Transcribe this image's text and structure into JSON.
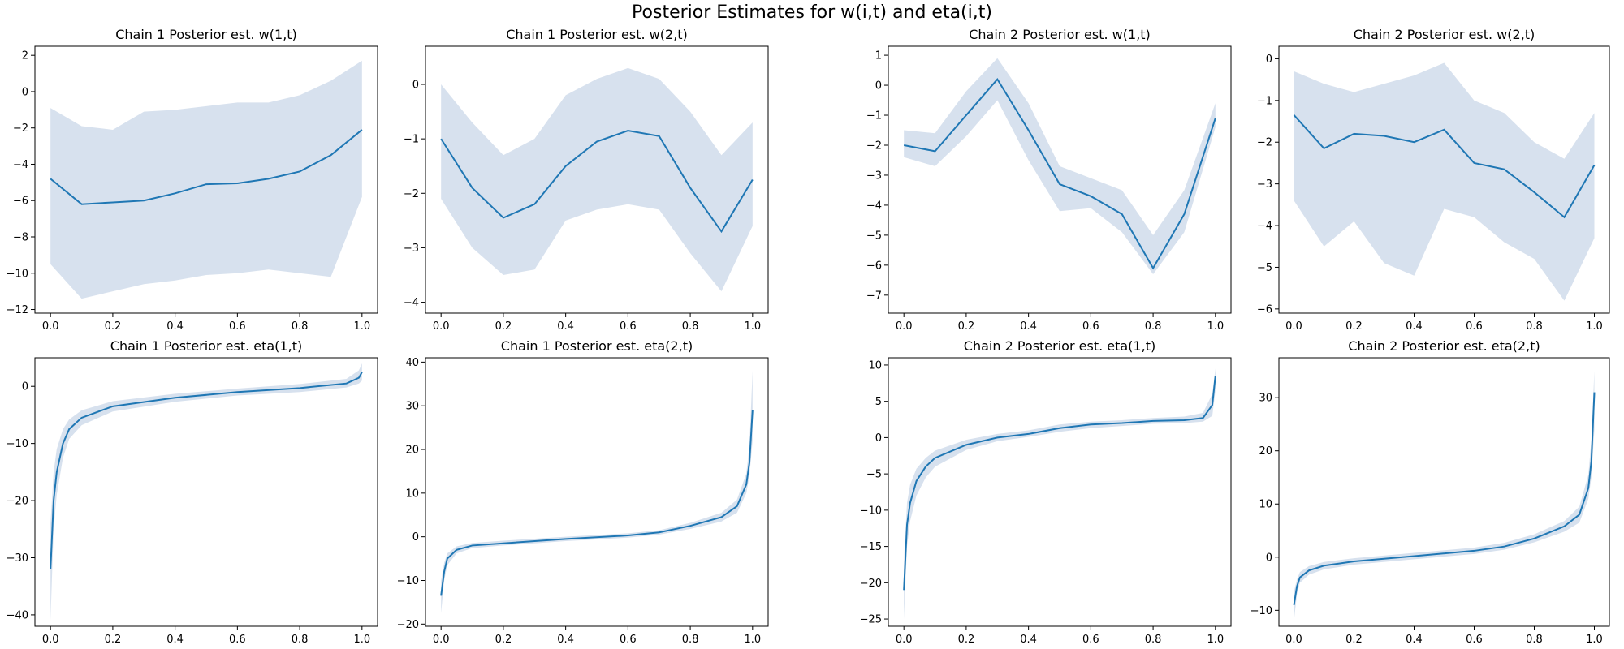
{
  "suptitle": "Posterior Estimates for w(i,t) and eta(i,t)",
  "colors": {
    "line": "#1f77b4",
    "band": "#b0c4de",
    "axes": "#000000"
  },
  "chart_data": [
    {
      "type": "line",
      "id": "c1-w1",
      "title": "Chain 1 Posterior est. w(1,t)",
      "xlim": [
        -0.05,
        1.05
      ],
      "ylim": [
        -12.2,
        2.5
      ],
      "xticks": [
        0.0,
        0.2,
        0.4,
        0.6,
        0.8,
        1.0
      ],
      "yticks": [
        -12,
        -10,
        -8,
        -6,
        -4,
        -2,
        0,
        2
      ],
      "xtick_labels": [
        "0.0",
        "0.2",
        "0.4",
        "0.6",
        "0.8",
        "1.0"
      ],
      "ytick_labels": [
        "−12",
        "−10",
        "−8",
        "−6",
        "−4",
        "−2",
        "0",
        "2"
      ],
      "x": [
        0.0,
        0.1,
        0.2,
        0.3,
        0.4,
        0.5,
        0.6,
        0.7,
        0.8,
        0.9,
        1.0
      ],
      "mean": [
        -4.8,
        -6.2,
        -6.1,
        -6.0,
        -5.6,
        -5.1,
        -5.05,
        -4.8,
        -4.4,
        -3.5,
        -2.1
      ],
      "upper": [
        -0.9,
        -1.9,
        -2.1,
        -1.1,
        -1.0,
        -0.8,
        -0.6,
        -0.6,
        -0.2,
        0.6,
        1.7
      ],
      "lower": [
        -9.5,
        -11.4,
        -11.0,
        -10.6,
        -10.4,
        -10.1,
        -10.0,
        -9.8,
        -10.0,
        -10.2,
        -5.8
      ]
    },
    {
      "type": "line",
      "id": "c1-w2",
      "title": "Chain 1 Posterior est. w(2,t)",
      "xlim": [
        -0.05,
        1.05
      ],
      "ylim": [
        -4.2,
        0.7
      ],
      "xticks": [
        0.0,
        0.2,
        0.4,
        0.6,
        0.8,
        1.0
      ],
      "yticks": [
        -4,
        -3,
        -2,
        -1,
        0
      ],
      "xtick_labels": [
        "0.0",
        "0.2",
        "0.4",
        "0.6",
        "0.8",
        "1.0"
      ],
      "ytick_labels": [
        "−4",
        "−3",
        "−2",
        "−1",
        "0"
      ],
      "x": [
        0.0,
        0.1,
        0.2,
        0.3,
        0.4,
        0.5,
        0.6,
        0.7,
        0.8,
        0.9,
        1.0
      ],
      "mean": [
        -1.0,
        -1.9,
        -2.45,
        -2.2,
        -1.5,
        -1.05,
        -0.85,
        -0.95,
        -1.9,
        -2.7,
        -1.75
      ],
      "upper": [
        0.0,
        -0.7,
        -1.3,
        -1.0,
        -0.2,
        0.1,
        0.3,
        0.1,
        -0.5,
        -1.3,
        -0.7
      ],
      "lower": [
        -2.1,
        -3.0,
        -3.5,
        -3.4,
        -2.5,
        -2.3,
        -2.2,
        -2.3,
        -3.1,
        -3.8,
        -2.6
      ]
    },
    {
      "type": "line",
      "id": "c2-w1",
      "title": "Chain 2 Posterior est. w(1,t)",
      "xlim": [
        -0.05,
        1.05
      ],
      "ylim": [
        -7.6,
        1.3
      ],
      "xticks": [
        0.0,
        0.2,
        0.4,
        0.6,
        0.8,
        1.0
      ],
      "yticks": [
        -7,
        -6,
        -5,
        -4,
        -3,
        -2,
        -1,
        0,
        1
      ],
      "xtick_labels": [
        "0.0",
        "0.2",
        "0.4",
        "0.6",
        "0.8",
        "1.0"
      ],
      "ytick_labels": [
        "−7",
        "−6",
        "−5",
        "−4",
        "−3",
        "−2",
        "−1",
        "0",
        "1"
      ],
      "x": [
        0.0,
        0.1,
        0.2,
        0.3,
        0.4,
        0.5,
        0.6,
        0.7,
        0.8,
        0.9,
        1.0
      ],
      "mean": [
        -2.0,
        -2.2,
        -1.0,
        0.2,
        -1.5,
        -3.3,
        -3.7,
        -4.3,
        -6.1,
        -4.3,
        -1.1
      ],
      "upper": [
        -1.5,
        -1.6,
        -0.2,
        0.9,
        -0.6,
        -2.7,
        -3.1,
        -3.5,
        -5.0,
        -3.5,
        -0.6
      ],
      "lower": [
        -2.4,
        -2.7,
        -1.7,
        -0.5,
        -2.5,
        -4.2,
        -4.1,
        -4.9,
        -6.3,
        -4.9,
        -1.4
      ]
    },
    {
      "type": "line",
      "id": "c2-w2",
      "title": "Chain 2 Posterior est. w(2,t)",
      "xlim": [
        -0.05,
        1.05
      ],
      "ylim": [
        -6.1,
        0.3
      ],
      "xticks": [
        0.0,
        0.2,
        0.4,
        0.6,
        0.8,
        1.0
      ],
      "yticks": [
        -6,
        -5,
        -4,
        -3,
        -2,
        -1,
        0
      ],
      "xtick_labels": [
        "0.0",
        "0.2",
        "0.4",
        "0.6",
        "0.8",
        "1.0"
      ],
      "ytick_labels": [
        "−6",
        "−5",
        "−4",
        "−3",
        "−2",
        "−1",
        "0"
      ],
      "x": [
        0.0,
        0.1,
        0.2,
        0.3,
        0.4,
        0.5,
        0.6,
        0.7,
        0.8,
        0.9,
        1.0
      ],
      "mean": [
        -1.35,
        -2.15,
        -1.8,
        -1.85,
        -2.0,
        -1.7,
        -2.5,
        -2.65,
        -3.2,
        -3.8,
        -2.55
      ],
      "upper": [
        -0.3,
        -0.6,
        -0.8,
        -0.6,
        -0.4,
        -0.1,
        -1.0,
        -1.3,
        -2.0,
        -2.4,
        -1.3
      ],
      "lower": [
        -3.4,
        -4.5,
        -3.9,
        -4.9,
        -5.2,
        -3.6,
        -3.8,
        -4.4,
        -4.8,
        -5.8,
        -4.3
      ]
    },
    {
      "type": "line",
      "id": "c1-eta1",
      "title": "Chain 1 Posterior est. eta(1,t)",
      "xlim": [
        -0.05,
        1.05
      ],
      "ylim": [
        -42,
        5
      ],
      "xticks": [
        0.0,
        0.2,
        0.4,
        0.6,
        0.8,
        1.0
      ],
      "yticks": [
        -40,
        -30,
        -20,
        -10,
        0
      ],
      "xtick_labels": [
        "0.0",
        "0.2",
        "0.4",
        "0.6",
        "0.8",
        "1.0"
      ],
      "ytick_labels": [
        "−40",
        "−30",
        "−20",
        "−10",
        "0"
      ],
      "x": [
        0.0,
        0.01,
        0.02,
        0.04,
        0.06,
        0.1,
        0.2,
        0.4,
        0.6,
        0.8,
        0.95,
        0.99,
        1.0
      ],
      "mean": [
        -32,
        -20,
        -15,
        -10,
        -7.5,
        -5.5,
        -3.5,
        -2.0,
        -1.0,
        -0.3,
        0.5,
        1.5,
        2.5
      ],
      "upper": [
        -24,
        -15,
        -11,
        -7.5,
        -5.8,
        -4.2,
        -2.6,
        -1.3,
        -0.4,
        0.4,
        1.3,
        2.8,
        4.0
      ],
      "lower": [
        -41,
        -25,
        -19,
        -12.5,
        -9.2,
        -6.8,
        -4.4,
        -2.7,
        -1.6,
        -1.0,
        -0.2,
        0.5,
        1.0
      ]
    },
    {
      "type": "line",
      "id": "c1-eta2",
      "title": "Chain 1 Posterior est. eta(2,t)",
      "xlim": [
        -0.05,
        1.05
      ],
      "ylim": [
        -20.5,
        41
      ],
      "xticks": [
        0.0,
        0.2,
        0.4,
        0.6,
        0.8,
        1.0
      ],
      "yticks": [
        -20,
        -10,
        0,
        10,
        20,
        30,
        40
      ],
      "xtick_labels": [
        "0.0",
        "0.2",
        "0.4",
        "0.6",
        "0.8",
        "1.0"
      ],
      "ytick_labels": [
        "−20",
        "−10",
        "0",
        "10",
        "20",
        "30",
        "40"
      ],
      "x": [
        0.0,
        0.01,
        0.02,
        0.05,
        0.1,
        0.2,
        0.4,
        0.6,
        0.7,
        0.8,
        0.9,
        0.95,
        0.98,
        0.99,
        1.0
      ],
      "mean": [
        -13.5,
        -8.0,
        -5.0,
        -3.0,
        -2.0,
        -1.5,
        -0.5,
        0.3,
        1.0,
        2.5,
        4.5,
        7.0,
        12.0,
        17.0,
        29.0
      ],
      "upper": [
        -10.0,
        -6.0,
        -3.8,
        -2.2,
        -1.4,
        -0.9,
        0.0,
        0.8,
        1.5,
        3.2,
        5.5,
        8.5,
        14.5,
        21.0,
        38.0
      ],
      "lower": [
        -17.5,
        -10.0,
        -6.5,
        -3.8,
        -2.6,
        -2.0,
        -1.0,
        -0.2,
        0.5,
        1.8,
        3.5,
        5.5,
        10.0,
        14.0,
        22.0
      ]
    },
    {
      "type": "line",
      "id": "c2-eta1",
      "title": "Chain 2 Posterior est. eta(1,t)",
      "xlim": [
        -0.05,
        1.05
      ],
      "ylim": [
        -26,
        11
      ],
      "xticks": [
        0.0,
        0.2,
        0.4,
        0.6,
        0.8,
        1.0
      ],
      "yticks": [
        -25,
        -20,
        -15,
        -10,
        -5,
        0,
        5,
        10
      ],
      "xtick_labels": [
        "0.0",
        "0.2",
        "0.4",
        "0.6",
        "0.8",
        "1.0"
      ],
      "ytick_labels": [
        "−25",
        "−20",
        "−15",
        "−10",
        "−5",
        "0",
        "5",
        "10"
      ],
      "x": [
        0.0,
        0.01,
        0.02,
        0.04,
        0.07,
        0.1,
        0.2,
        0.3,
        0.4,
        0.5,
        0.6,
        0.7,
        0.8,
        0.9,
        0.96,
        0.99,
        1.0
      ],
      "mean": [
        -21,
        -12,
        -9,
        -6,
        -4.0,
        -2.8,
        -1.0,
        0.0,
        0.5,
        1.3,
        1.8,
        2.0,
        2.3,
        2.4,
        2.7,
        4.5,
        8.5
      ],
      "upper": [
        -17,
        -9,
        -6.5,
        -4.3,
        -2.8,
        -1.8,
        -0.3,
        0.5,
        1.0,
        1.8,
        2.2,
        2.4,
        2.7,
        2.9,
        3.4,
        6.0,
        9.5
      ],
      "lower": [
        -25,
        -15,
        -11.5,
        -8.0,
        -5.5,
        -4.0,
        -1.7,
        -0.5,
        0.1,
        0.8,
        1.3,
        1.6,
        1.9,
        2.0,
        2.2,
        3.0,
        6.5
      ]
    },
    {
      "type": "line",
      "id": "c2-eta2",
      "title": "Chain 2 Posterior est. eta(2,t)",
      "xlim": [
        -0.05,
        1.05
      ],
      "ylim": [
        -13,
        37.5
      ],
      "xticks": [
        0.0,
        0.2,
        0.4,
        0.6,
        0.8,
        1.0
      ],
      "yticks": [
        -10,
        0,
        10,
        20,
        30
      ],
      "xtick_labels": [
        "0.0",
        "0.2",
        "0.4",
        "0.6",
        "0.8",
        "1.0"
      ],
      "ytick_labels": [
        "−10",
        "0",
        "10",
        "20",
        "30"
      ],
      "x": [
        0.0,
        0.01,
        0.02,
        0.05,
        0.1,
        0.2,
        0.4,
        0.6,
        0.7,
        0.8,
        0.9,
        0.95,
        0.98,
        0.99,
        1.0
      ],
      "mean": [
        -9.0,
        -5.5,
        -3.8,
        -2.5,
        -1.6,
        -0.8,
        0.2,
        1.2,
        2.0,
        3.5,
        5.8,
        8.0,
        13.0,
        18.0,
        31.0
      ],
      "upper": [
        -6.5,
        -4.2,
        -2.8,
        -1.7,
        -0.9,
        -0.2,
        0.8,
        1.8,
        2.7,
        4.3,
        6.8,
        9.5,
        15.5,
        22.0,
        35.0
      ],
      "lower": [
        -12.0,
        -7.0,
        -4.8,
        -3.3,
        -2.3,
        -1.4,
        -0.4,
        0.6,
        1.4,
        2.8,
        4.8,
        6.5,
        11.0,
        15.0,
        24.0
      ]
    }
  ]
}
